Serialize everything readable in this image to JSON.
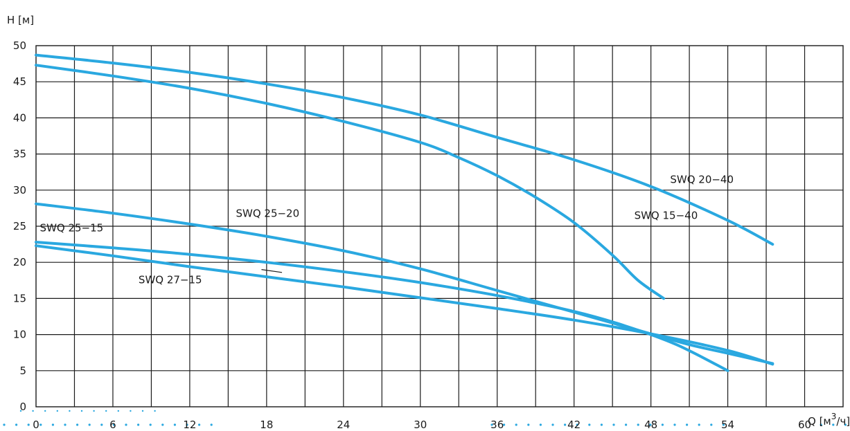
{
  "chart_data": {
    "type": "line",
    "title": "",
    "ylabel": "H [м]",
    "xlabel_main": "Q [м",
    "xlabel_sup": "3",
    "xlabel_tail": "/ч]",
    "xlim": [
      0,
      63
    ],
    "ylim": [
      0,
      50
    ],
    "x_ticks": [
      0,
      6,
      12,
      18,
      24,
      30,
      36,
      42,
      48,
      54,
      60
    ],
    "y_ticks": [
      0,
      5,
      10,
      15,
      20,
      25,
      30,
      35,
      40,
      45,
      50
    ],
    "grid": true,
    "series_color": "#2aa8e0",
    "series": [
      {
        "name": "SWQ 20−40",
        "points": [
          [
            0,
            48.7
          ],
          [
            6,
            47.6
          ],
          [
            12,
            46.3
          ],
          [
            18,
            44.7
          ],
          [
            24,
            42.8
          ],
          [
            30,
            40.4
          ],
          [
            36,
            37.3
          ],
          [
            42,
            34.2
          ],
          [
            48,
            30.5
          ],
          [
            54,
            25.8
          ],
          [
            57.5,
            22.5
          ]
        ]
      },
      {
        "name": "SWQ 15−40",
        "points": [
          [
            0,
            47.3
          ],
          [
            6,
            45.8
          ],
          [
            12,
            44.1
          ],
          [
            18,
            42.0
          ],
          [
            24,
            39.5
          ],
          [
            30,
            36.6
          ],
          [
            33,
            34.5
          ],
          [
            36,
            32.0
          ],
          [
            39,
            29.0
          ],
          [
            42,
            25.5
          ],
          [
            45,
            21.0
          ],
          [
            47,
            17.5
          ],
          [
            49,
            15.0
          ]
        ]
      },
      {
        "name": "SWQ 25−20",
        "points": [
          [
            0,
            28.1
          ],
          [
            6,
            26.8
          ],
          [
            12,
            25.3
          ],
          [
            18,
            23.6
          ],
          [
            24,
            21.6
          ],
          [
            30,
            19.1
          ],
          [
            36,
            16.1
          ],
          [
            42,
            13.1
          ],
          [
            48,
            10.1
          ],
          [
            51,
            8.6
          ],
          [
            54,
            7.4
          ],
          [
            57.5,
            6.0
          ]
        ]
      },
      {
        "name": "SWQ 25−15",
        "points": [
          [
            0,
            22.8
          ],
          [
            6,
            22.0
          ],
          [
            12,
            21.1
          ],
          [
            18,
            20.0
          ],
          [
            24,
            18.7
          ],
          [
            30,
            17.2
          ],
          [
            36,
            15.4
          ],
          [
            42,
            13.2
          ],
          [
            46,
            11.2
          ],
          [
            50,
            8.6
          ],
          [
            54,
            5.0
          ]
        ]
      },
      {
        "name": "SWQ 27−15",
        "points": [
          [
            0,
            22.3
          ],
          [
            6,
            20.9
          ],
          [
            12,
            19.4
          ],
          [
            18,
            18.0
          ],
          [
            24,
            16.6
          ],
          [
            30,
            15.1
          ],
          [
            36,
            13.6
          ],
          [
            42,
            12.0
          ],
          [
            48,
            10.1
          ],
          [
            54,
            7.8
          ],
          [
            57.5,
            5.9
          ]
        ]
      }
    ],
    "annotations": [
      {
        "series": "SWQ 20−40",
        "text": "SWQ 20−40",
        "at": [
          49.5,
          31.0
        ]
      },
      {
        "series": "SWQ 15−40",
        "text": "SWQ 15−40",
        "at": [
          46.7,
          26.0
        ]
      },
      {
        "series": "SWQ 25−20",
        "text": "SWQ 25−20",
        "at": [
          15.6,
          26.3
        ]
      },
      {
        "series": "SWQ 25−15",
        "text": "SWQ 25−15",
        "at": [
          0.3,
          24.3
        ]
      },
      {
        "series": "SWQ 27−15",
        "text": "SWQ 27−15",
        "at": [
          8.0,
          17.1
        ]
      }
    ]
  }
}
